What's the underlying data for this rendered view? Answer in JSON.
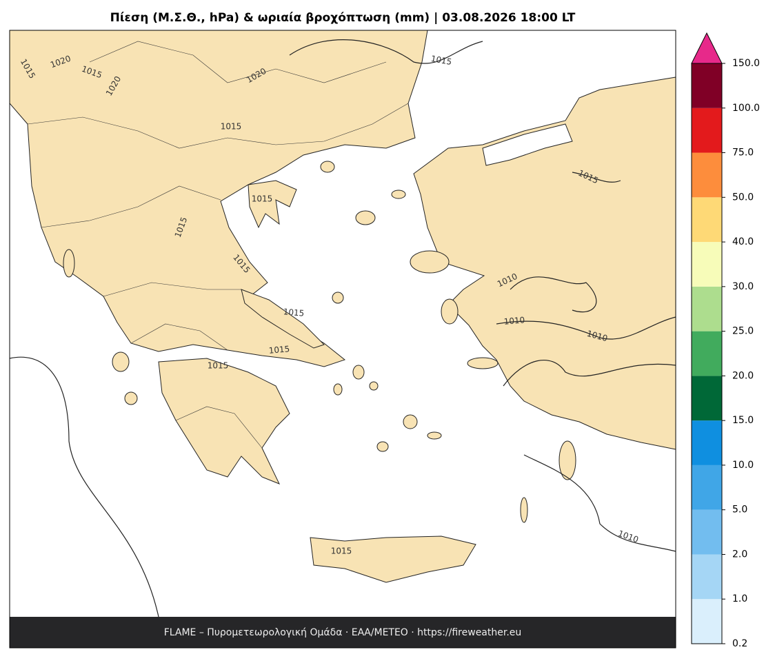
{
  "title": "Πίεση (Μ.Σ.Θ., hPa) & ωριαία βροχόπτωση (mm)  |  03.08.2026 18:00 LT",
  "footer": "FLAME – Πυρομετεωρολογική Ομάδα · ΕΑΑ/METEO · https://fireweather.eu",
  "contour_labels": [
    1015,
    1020,
    1015,
    1020,
    1020,
    1015,
    1015,
    1015,
    1015,
    1015,
    1015,
    1015,
    1015,
    1015,
    1010,
    1010,
    1010,
    1010,
    1015
  ],
  "colorbar": {
    "ticks": [
      {
        "value": 0.2,
        "label": "0.2"
      },
      {
        "value": 1,
        "label": "1.0"
      },
      {
        "value": 2,
        "label": "2.0"
      },
      {
        "value": 5,
        "label": "5.0"
      },
      {
        "value": 10,
        "label": "10.0"
      },
      {
        "value": 15,
        "label": "15.0"
      },
      {
        "value": 20,
        "label": "20.0"
      },
      {
        "value": 25,
        "label": "25.0"
      },
      {
        "value": 30,
        "label": "30.0"
      },
      {
        "value": 40,
        "label": "40.0"
      },
      {
        "value": 50,
        "label": "50.0"
      },
      {
        "value": 75,
        "label": "75.0"
      },
      {
        "value": 100,
        "label": "100.0"
      },
      {
        "value": 150,
        "label": "150.0"
      }
    ],
    "colors": [
      "#daeffc",
      "#a5d6f5",
      "#72bdef",
      "#40a6e7",
      "#0f8fe0",
      "#006837",
      "#41ab5d",
      "#addd8e",
      "#f7fcb9",
      "#fed976",
      "#fd8d3c",
      "#e31a1c",
      "#800026"
    ],
    "extend_color": "#e7298a"
  }
}
